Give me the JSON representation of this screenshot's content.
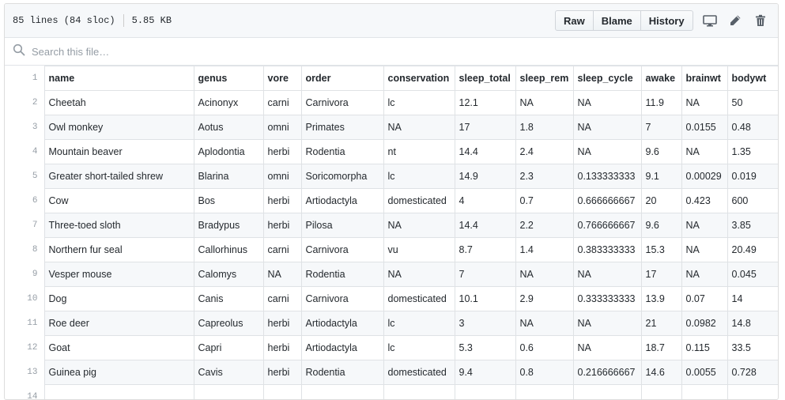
{
  "file": {
    "lines": "85 lines (84 sloc)",
    "size": "5.85 KB"
  },
  "toolbar": {
    "raw_label": "Raw",
    "blame_label": "Blame",
    "history_label": "History"
  },
  "search": {
    "placeholder": "Search this file…"
  },
  "table": {
    "header_line": "1",
    "columns": [
      "name",
      "genus",
      "vore",
      "order",
      "conservation",
      "sleep_total",
      "sleep_rem",
      "sleep_cycle",
      "awake",
      "brainwt",
      "bodywt"
    ],
    "rows": [
      {
        "line": "2",
        "cells": [
          "Cheetah",
          "Acinonyx",
          "carni",
          "Carnivora",
          "lc",
          "12.1",
          "NA",
          "NA",
          "11.9",
          "NA",
          "50"
        ]
      },
      {
        "line": "3",
        "cells": [
          "Owl monkey",
          "Aotus",
          "omni",
          "Primates",
          "NA",
          "17",
          "1.8",
          "NA",
          "7",
          "0.0155",
          "0.48"
        ]
      },
      {
        "line": "4",
        "cells": [
          "Mountain beaver",
          "Aplodontia",
          "herbi",
          "Rodentia",
          "nt",
          "14.4",
          "2.4",
          "NA",
          "9.6",
          "NA",
          "1.35"
        ]
      },
      {
        "line": "5",
        "cells": [
          "Greater short-tailed shrew",
          "Blarina",
          "omni",
          "Soricomorpha",
          "lc",
          "14.9",
          "2.3",
          "0.133333333",
          "9.1",
          "0.00029",
          "0.019"
        ]
      },
      {
        "line": "6",
        "cells": [
          "Cow",
          "Bos",
          "herbi",
          "Artiodactyla",
          "domesticated",
          "4",
          "0.7",
          "0.666666667",
          "20",
          "0.423",
          "600"
        ]
      },
      {
        "line": "7",
        "cells": [
          "Three-toed sloth",
          "Bradypus",
          "herbi",
          "Pilosa",
          "NA",
          "14.4",
          "2.2",
          "0.766666667",
          "9.6",
          "NA",
          "3.85"
        ]
      },
      {
        "line": "8",
        "cells": [
          "Northern fur seal",
          "Callorhinus",
          "carni",
          "Carnivora",
          "vu",
          "8.7",
          "1.4",
          "0.383333333",
          "15.3",
          "NA",
          "20.49"
        ]
      },
      {
        "line": "9",
        "cells": [
          "Vesper mouse",
          "Calomys",
          "NA",
          "Rodentia",
          "NA",
          "7",
          "NA",
          "NA",
          "17",
          "NA",
          "0.045"
        ]
      },
      {
        "line": "10",
        "cells": [
          "Dog",
          "Canis",
          "carni",
          "Carnivora",
          "domesticated",
          "10.1",
          "2.9",
          "0.333333333",
          "13.9",
          "0.07",
          "14"
        ]
      },
      {
        "line": "11",
        "cells": [
          "Roe deer",
          "Capreolus",
          "herbi",
          "Artiodactyla",
          "lc",
          "3",
          "NA",
          "NA",
          "21",
          "0.0982",
          "14.8"
        ]
      },
      {
        "line": "12",
        "cells": [
          "Goat",
          "Capri",
          "herbi",
          "Artiodactyla",
          "lc",
          "5.3",
          "0.6",
          "NA",
          "18.7",
          "0.115",
          "33.5"
        ]
      },
      {
        "line": "13",
        "cells": [
          "Guinea pig",
          "Cavis",
          "herbi",
          "Rodentia",
          "domesticated",
          "9.4",
          "0.8",
          "0.216666667",
          "14.6",
          "0.0055",
          "0.728"
        ]
      },
      {
        "line": "14",
        "cells": [
          "",
          "",
          "",
          "",
          "",
          "",
          "",
          "",
          "",
          "",
          ""
        ]
      }
    ]
  }
}
